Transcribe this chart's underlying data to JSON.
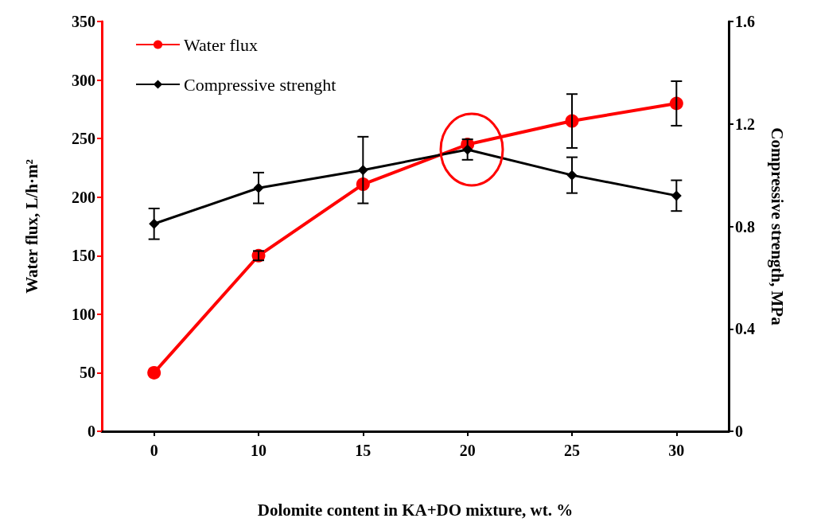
{
  "chart_data": {
    "type": "line",
    "xlabel": "Dolomite content in KA+DO mixture, wt. %",
    "ylabel": "Water flux, L/h·m²",
    "y2label": "Compressive strength, MPa",
    "categories": [
      "0",
      "10",
      "15",
      "20",
      "25",
      "30"
    ],
    "series": [
      {
        "name": "Water flux",
        "color": "#ff0000",
        "marker": "circle",
        "values": [
          50,
          150,
          211,
          245,
          265,
          280
        ],
        "errors": [
          null,
          4,
          null,
          null,
          23,
          19
        ]
      },
      {
        "name": "Compressive strenght",
        "color": "#000000",
        "marker": "diamond",
        "axis": "y2",
        "values": [
          0.81,
          0.95,
          1.02,
          1.1,
          1.0,
          0.92
        ],
        "errors": [
          0.06,
          0.06,
          0.13,
          0.04,
          0.07,
          0.06
        ]
      }
    ],
    "ylim": [
      0,
      350
    ],
    "yticks": [
      0,
      50,
      100,
      150,
      200,
      250,
      300,
      350
    ],
    "y2lim": [
      0,
      1.6
    ],
    "y2ticks": [
      0,
      0.4,
      0.8,
      1.2,
      1.6
    ],
    "legend": "top left",
    "grid": false
  }
}
